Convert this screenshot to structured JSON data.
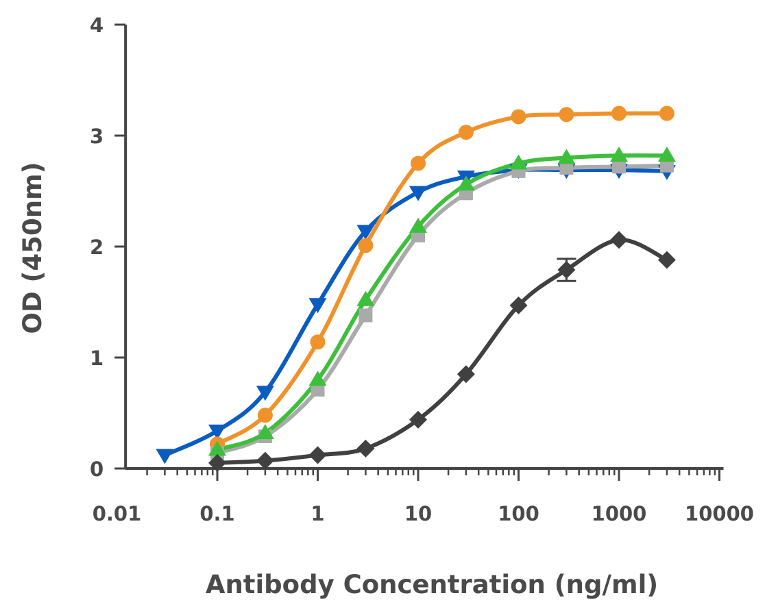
{
  "chart_data": {
    "type": "line",
    "title": "",
    "xlabel": "Antibody Concentration (ng/ml)",
    "ylabel": "OD (450nm)",
    "xscale": "log",
    "xlim": [
      0.0122,
      10000
    ],
    "ylim": [
      0,
      4
    ],
    "xticks": [
      "0.01",
      "0.1",
      "1",
      "10",
      "100",
      "1000",
      "10000"
    ],
    "yticks": [
      "0",
      "1",
      "2",
      "3",
      "4"
    ],
    "grid": false,
    "legend": "none",
    "series": [
      {
        "color": "#0a5cc0",
        "marker": "triangle-down",
        "x": [
          0.03,
          0.1,
          0.3,
          1,
          3,
          10,
          30,
          100,
          300,
          1000,
          3000
        ],
        "y": [
          0.12,
          0.34,
          0.69,
          1.48,
          2.14,
          2.49,
          2.63,
          2.69,
          2.69,
          2.69,
          2.68
        ]
      },
      {
        "color": "#f0922b",
        "marker": "circle",
        "x": [
          0.1,
          0.3,
          1,
          3,
          10,
          30,
          100,
          300,
          1000,
          3000
        ],
        "y": [
          0.22,
          0.48,
          1.14,
          2.01,
          2.75,
          3.03,
          3.17,
          3.19,
          3.2,
          3.2
        ]
      },
      {
        "color": "#aaaaaa",
        "marker": "square",
        "x": [
          0.1,
          0.3,
          1,
          3,
          10,
          30,
          100,
          300,
          1000,
          3000
        ],
        "y": [
          0.14,
          0.29,
          0.71,
          1.38,
          2.1,
          2.48,
          2.68,
          2.71,
          2.72,
          2.73
        ]
      },
      {
        "color": "#3cbf3a",
        "marker": "triangle-up",
        "x": [
          0.1,
          0.3,
          1,
          3,
          10,
          30,
          100,
          300,
          1000,
          3000
        ],
        "y": [
          0.17,
          0.32,
          0.8,
          1.52,
          2.18,
          2.56,
          2.75,
          2.8,
          2.82,
          2.82
        ]
      },
      {
        "color": "#404040",
        "marker": "diamond",
        "x": [
          0.1,
          0.3,
          1,
          3,
          10,
          30,
          100,
          300,
          1000,
          3000
        ],
        "y": [
          0.05,
          0.07,
          0.12,
          0.18,
          0.44,
          0.85,
          1.47,
          1.79,
          2.06,
          1.88
        ],
        "error": [
          0,
          0,
          0,
          0,
          0,
          0,
          0,
          0.1,
          0,
          0
        ]
      }
    ]
  }
}
